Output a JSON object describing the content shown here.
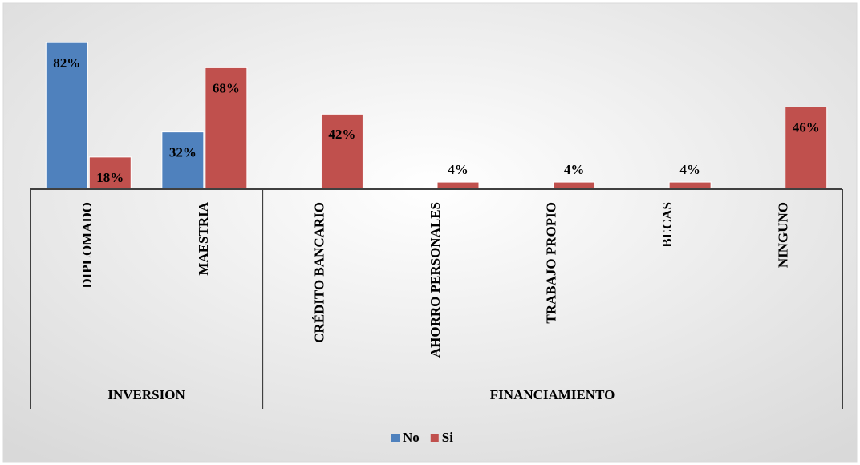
{
  "chart_data": {
    "type": "bar",
    "categories": [
      "DIPLOMADO",
      "MAESTRIA",
      "CRÉDITO BANCARIO",
      "AHORRO PERSONALES",
      "TRABAJO PROPIO",
      "BECAS",
      "NINGUNO"
    ],
    "groups": [
      {
        "label": "INVERSION",
        "size": 2
      },
      {
        "label": "FINANCIAMIENTO",
        "size": 5
      }
    ],
    "series": [
      {
        "name": "No",
        "color": "#4f81bd",
        "values": [
          82,
          32,
          null,
          null,
          null,
          null,
          null
        ],
        "value_labels": [
          "82%",
          "32%",
          null,
          null,
          null,
          null,
          null
        ]
      },
      {
        "name": "Si",
        "color": "#c0504d",
        "values": [
          18,
          68,
          42,
          4,
          4,
          4,
          46
        ],
        "value_labels": [
          "18%",
          "68%",
          "42%",
          "4%",
          "4%",
          "4%",
          "46%"
        ]
      }
    ],
    "legend": "bottom"
  }
}
